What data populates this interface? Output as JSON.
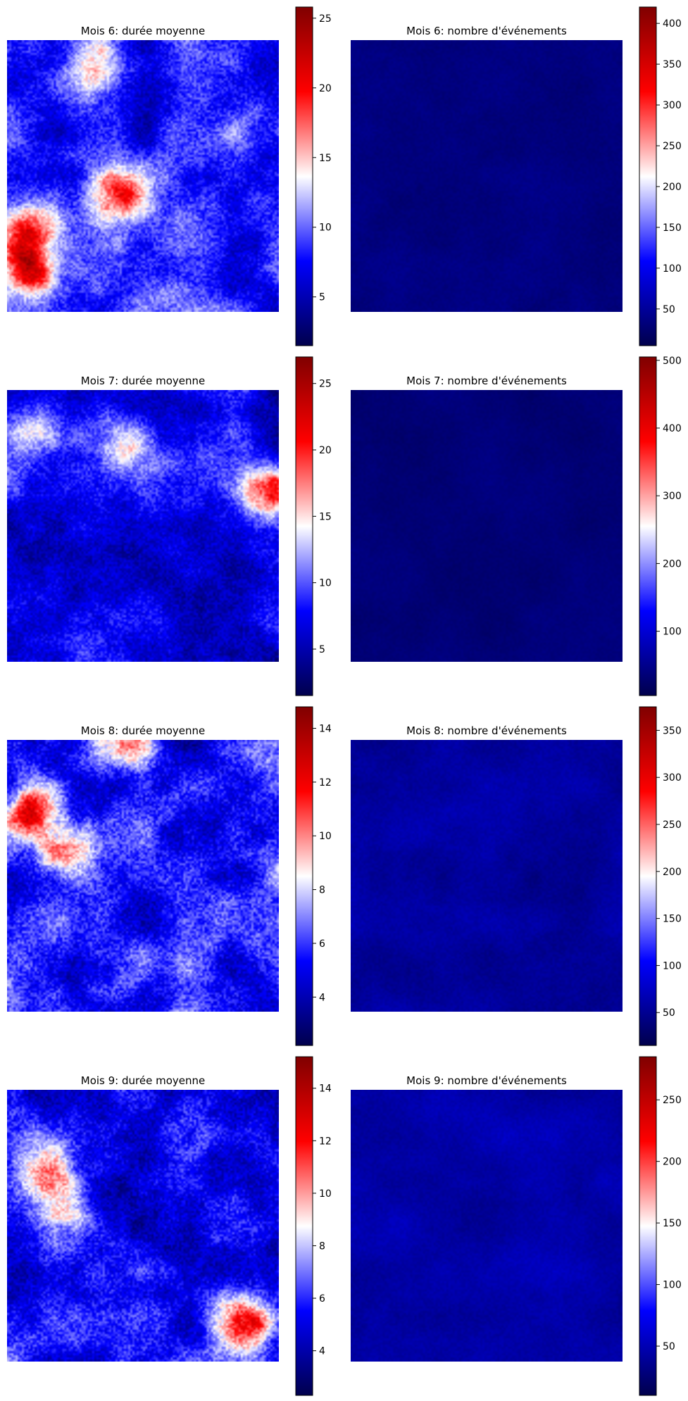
{
  "colormap": [
    "#00004c",
    "#0000ff",
    "#ffffff",
    "#ff0000",
    "#800000"
  ],
  "chart_data": [
    {
      "type": "heatmap",
      "title": "Mois 6: durée moyenne",
      "colorbar": {
        "range": [
          1.5,
          25.8
        ],
        "ticks": [
          5,
          10,
          15,
          20,
          25
        ]
      },
      "hotspots": [
        {
          "u": 0.4,
          "v": 0.55,
          "value": 20
        },
        {
          "u": 0.08,
          "v": 0.85,
          "value": 21
        },
        {
          "u": 0.05,
          "v": 0.7,
          "value": 18
        },
        {
          "u": 0.3,
          "v": 0.12,
          "value": 15
        }
      ],
      "base_value": 8,
      "spread": 5
    },
    {
      "type": "heatmap",
      "title": "Mois 6: nombre d'événements",
      "colorbar": {
        "range": [
          5,
          420
        ],
        "ticks": [
          50,
          100,
          150,
          200,
          250,
          300,
          350,
          400
        ]
      },
      "hotspots": [],
      "base_value": 35,
      "spread": 15
    },
    {
      "type": "heatmap",
      "title": "Mois 7: durée moyenne",
      "colorbar": {
        "range": [
          1.5,
          27
        ],
        "ticks": [
          5,
          10,
          15,
          20,
          25
        ]
      },
      "hotspots": [
        {
          "u": 0.96,
          "v": 0.38,
          "value": 21
        },
        {
          "u": 0.45,
          "v": 0.2,
          "value": 15
        },
        {
          "u": 0.1,
          "v": 0.15,
          "value": 13
        }
      ],
      "base_value": 7,
      "spread": 5
    },
    {
      "type": "heatmap",
      "title": "Mois 7: nombre d'événements",
      "colorbar": {
        "range": [
          5,
          505
        ],
        "ticks": [
          100,
          200,
          300,
          400,
          500
        ]
      },
      "hotspots": [],
      "base_value": 35,
      "spread": 15
    },
    {
      "type": "heatmap",
      "title": "Mois 8: durée moyenne",
      "colorbar": {
        "range": [
          2.2,
          14.8
        ],
        "ticks": [
          4,
          6,
          8,
          10,
          12,
          14
        ]
      },
      "hotspots": [
        {
          "u": 0.08,
          "v": 0.25,
          "value": 11.5
        },
        {
          "u": 0.2,
          "v": 0.4,
          "value": 10.5
        },
        {
          "u": 0.45,
          "v": 0.02,
          "value": 10
        }
      ],
      "base_value": 5.5,
      "spread": 3
    },
    {
      "type": "heatmap",
      "title": "Mois 8: nombre d'événements",
      "colorbar": {
        "range": [
          15,
          375
        ],
        "ticks": [
          50,
          100,
          150,
          200,
          250,
          300,
          350
        ]
      },
      "hotspots": [],
      "base_value": 55,
      "spread": 20
    },
    {
      "type": "heatmap",
      "title": "Mois 9: durée moyenne",
      "colorbar": {
        "range": [
          2.3,
          15.2
        ],
        "ticks": [
          4,
          6,
          8,
          10,
          12,
          14
        ]
      },
      "hotspots": [
        {
          "u": 0.12,
          "v": 0.3,
          "value": 11
        },
        {
          "u": 0.88,
          "v": 0.85,
          "value": 12
        },
        {
          "u": 0.2,
          "v": 0.45,
          "value": 10
        }
      ],
      "base_value": 5.5,
      "spread": 3
    },
    {
      "type": "heatmap",
      "title": "Mois 9: nombre d'événements",
      "colorbar": {
        "range": [
          10,
          285
        ],
        "ticks": [
          50,
          100,
          150,
          200,
          250
        ]
      },
      "hotspots": [],
      "base_value": 45,
      "spread": 15
    }
  ]
}
